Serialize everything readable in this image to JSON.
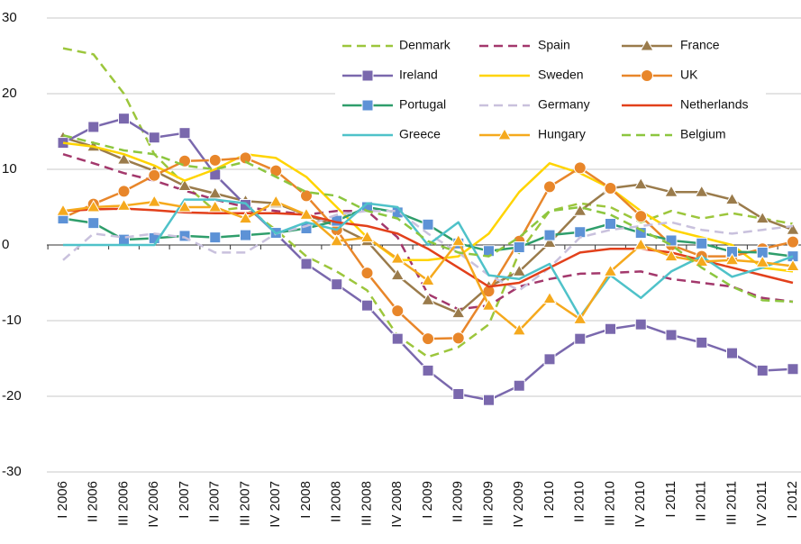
{
  "chart_data": {
    "type": "line",
    "categories": [
      "I 2006",
      "II 2006",
      "III 2006",
      "IV 2006",
      "I 2007",
      "II 2007",
      "III 2007",
      "IV 2007",
      "I 2008",
      "II 2008",
      "III 2008",
      "IV 2008",
      "I 2009",
      "II 2009",
      "III 2009",
      "IV 2009",
      "I 2010",
      "II 2010",
      "III 2010",
      "IV 2010",
      "I 2011",
      "II 2011",
      "III 2011",
      "IV 2011",
      "I 2012"
    ],
    "ylim": [
      -30,
      30
    ],
    "yticks": [
      -30,
      -20,
      -10,
      0,
      10,
      20,
      30
    ],
    "grid": true,
    "legend": "top-right",
    "series": [
      {
        "name": "Denmark",
        "color": "#9cc63c",
        "dash": true,
        "values": [
          26,
          25.2,
          20,
          12,
          8,
          4.5,
          5,
          2,
          -1.5,
          -3.5,
          -6,
          -12,
          -14.8,
          -13.5,
          -10.5,
          -1,
          4.5,
          5.5,
          5,
          3,
          4.5,
          3.5,
          4.2,
          3.5,
          2.8
        ]
      },
      {
        "name": "Spain",
        "color": "#a3386c",
        "dash": true,
        "values": [
          12,
          10.8,
          9.5,
          8.5,
          7.2,
          6,
          5,
          4.5,
          4,
          4.5,
          4.5,
          1,
          -6.5,
          -8.5,
          -8,
          -5.5,
          -4.5,
          -3.8,
          -3.7,
          -3.5,
          -4.5,
          -5,
          -5.5,
          -7,
          -7.5
        ]
      },
      {
        "name": "France",
        "color": "#9a7b4b",
        "marker": "triangle",
        "values": [
          14.2,
          13,
          11.3,
          9.8,
          7.8,
          6.8,
          5.8,
          5.5,
          4,
          2.5,
          0.5,
          -4,
          -7.3,
          -9,
          -5.5,
          -3.5,
          0.3,
          4.5,
          7.5,
          8,
          7,
          7,
          6,
          3.5,
          2
        ]
      },
      {
        "name": "Ireland",
        "color": "#7a68ad",
        "marker": "square",
        "values": [
          13.5,
          15.6,
          16.7,
          14.2,
          14.8,
          9.3,
          5.3,
          1.5,
          -2.5,
          -5.2,
          -8,
          -12.4,
          -16.6,
          -19.7,
          -20.5,
          -18.6,
          -15.1,
          -12.4,
          -11.1,
          -10.5,
          -11.9,
          -12.9,
          -14.3,
          -16.6,
          -16.4
        ]
      },
      {
        "name": "Sweden",
        "color": "#ffd400",
        "values": [
          13.5,
          13,
          12,
          10.5,
          8.5,
          10,
          12,
          11.5,
          9,
          5,
          1,
          -2,
          -2,
          -1.5,
          1.5,
          7,
          10.8,
          9.5,
          7.5,
          4.5,
          2,
          1,
          0,
          -3,
          -3.5
        ]
      },
      {
        "name": "UK",
        "color": "#e8862a",
        "marker": "circle",
        "values": [
          3.6,
          5.4,
          7.1,
          9.2,
          11.1,
          11.2,
          11.5,
          9.8,
          6.5,
          2,
          -3.7,
          -8.7,
          -12.4,
          -12.3,
          -6.1,
          0.5,
          7.7,
          10.2,
          7.5,
          3.8,
          0,
          -1.5,
          -1.5,
          -0.5,
          0.4
        ]
      },
      {
        "name": "Portugal",
        "color": "#2f9e6b",
        "marker": "square",
        "marker_color": "#5d92d6",
        "values": [
          3.5,
          2.9,
          0.7,
          0.9,
          1.2,
          1,
          1.3,
          1.6,
          2.2,
          3.2,
          5,
          4.3,
          2.7,
          0.2,
          -0.8,
          -0.3,
          1.3,
          1.7,
          2.8,
          1.6,
          0.6,
          0.2,
          -0.9,
          -1,
          -1.5
        ]
      },
      {
        "name": "Germany",
        "color": "#c9c1dd",
        "dash": true,
        "values": [
          -2,
          1.5,
          1,
          1.5,
          1,
          -1,
          -1,
          1.5,
          2.5,
          4,
          4.5,
          4.5,
          1.5,
          -1,
          -4,
          -6,
          -3,
          1,
          2,
          2.5,
          3,
          2,
          1.5,
          2,
          2.5
        ]
      },
      {
        "name": "Netherlands",
        "color": "#e2401b",
        "values": [
          4.5,
          4.7,
          4.8,
          4.6,
          4.3,
          4.2,
          4.2,
          4.2,
          4,
          3,
          2.5,
          1.5,
          -0.5,
          -3,
          -5.5,
          -5,
          -3,
          -1,
          -0.5,
          -0.5,
          -1,
          -2,
          -3,
          -4,
          -5
        ]
      },
      {
        "name": "Greece",
        "color": "#4fc2c9",
        "values": [
          0,
          0,
          0,
          0,
          6,
          6,
          5.5,
          1.5,
          3,
          2,
          5.5,
          5,
          0,
          3,
          -4,
          -4.5,
          -2.5,
          -9.5,
          -4,
          -7,
          -3.5,
          -1.5,
          -4.2,
          -3,
          -1.5
        ]
      },
      {
        "name": "Hungary",
        "color": "#f5a91d",
        "marker": "triangle",
        "values": [
          4.5,
          5,
          5.2,
          5.7,
          5,
          5,
          3.5,
          5.7,
          4,
          0.5,
          1,
          -1.8,
          -4.7,
          0.5,
          -8,
          -11.3,
          -7.1,
          -9.8,
          -3.5,
          0,
          -1.5,
          -2.2,
          -2,
          -2.3,
          -2.8
        ]
      },
      {
        "name": "Belgium",
        "color": "#8cc63f",
        "dash": true,
        "values": [
          14.5,
          13.5,
          12.5,
          12,
          10.5,
          10,
          11,
          9,
          7,
          6.5,
          4.5,
          3.5,
          0.5,
          -1,
          -1.5,
          1,
          4.5,
          5,
          4,
          2,
          0,
          -3,
          -5.5,
          -7.3,
          -7.5
        ]
      }
    ]
  }
}
